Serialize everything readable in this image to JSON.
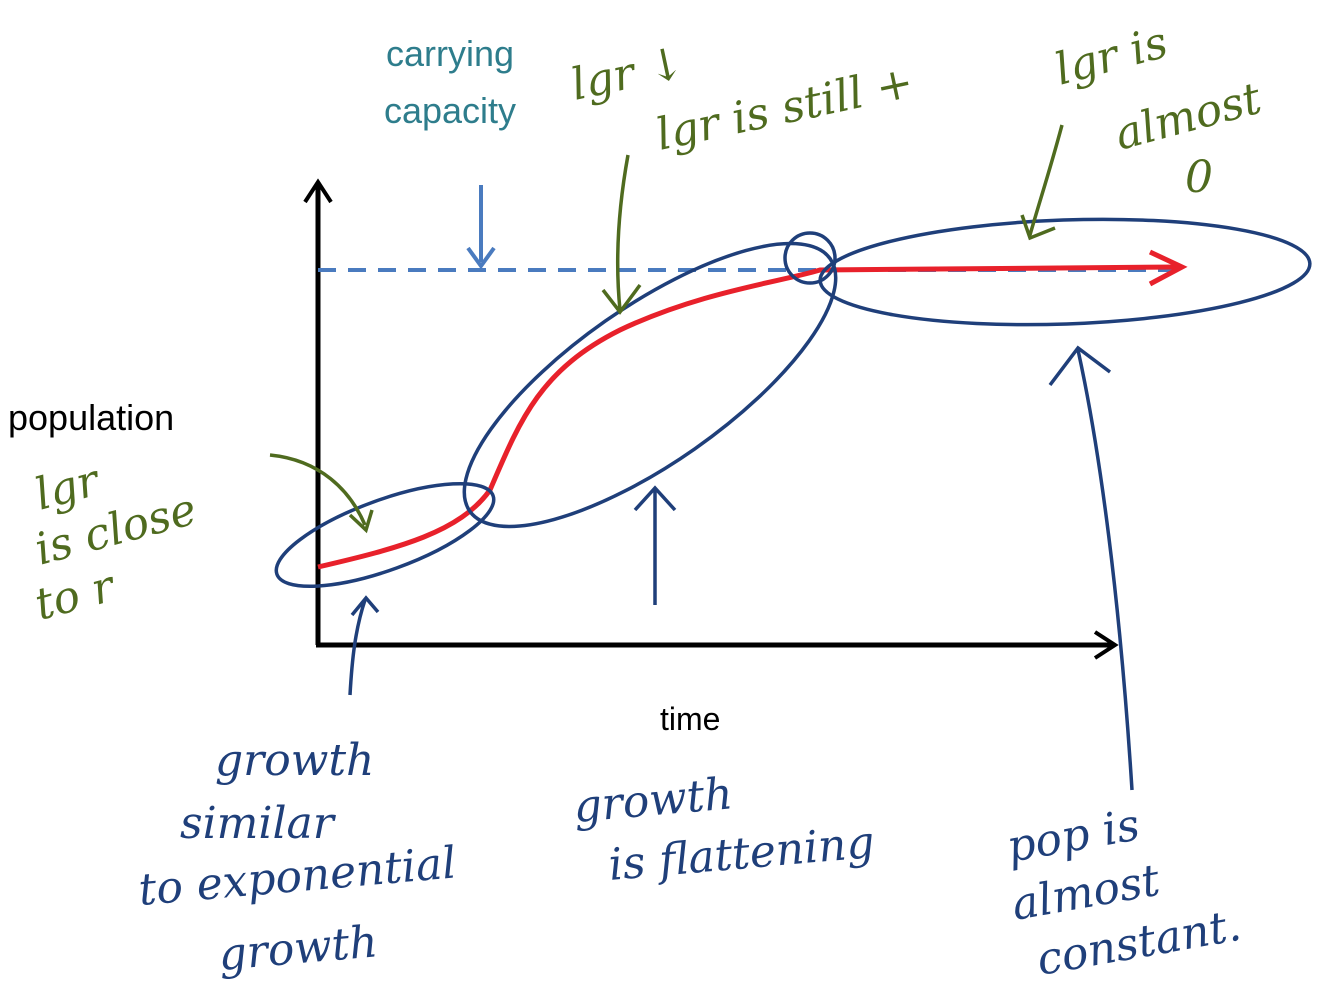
{
  "axes": {
    "y_label": "population",
    "x_label": "time"
  },
  "reference_line": {
    "label_lines": [
      "carrying",
      "capacity"
    ]
  },
  "annotations": {
    "lgr_down": "lgr ↓",
    "lgr_still_positive": "lgr is still +",
    "lgr_almost_zero": [
      "lgr is",
      "almost",
      "0"
    ],
    "lgr_close_to_r": [
      "lgr",
      "is close",
      "to r"
    ],
    "phase_exponential": [
      "growth",
      "similar",
      "to exponential",
      "growth"
    ],
    "phase_flattening": [
      "growth",
      "is flattening"
    ],
    "phase_constant": [
      "pop is",
      "almost",
      "constant."
    ]
  }
}
